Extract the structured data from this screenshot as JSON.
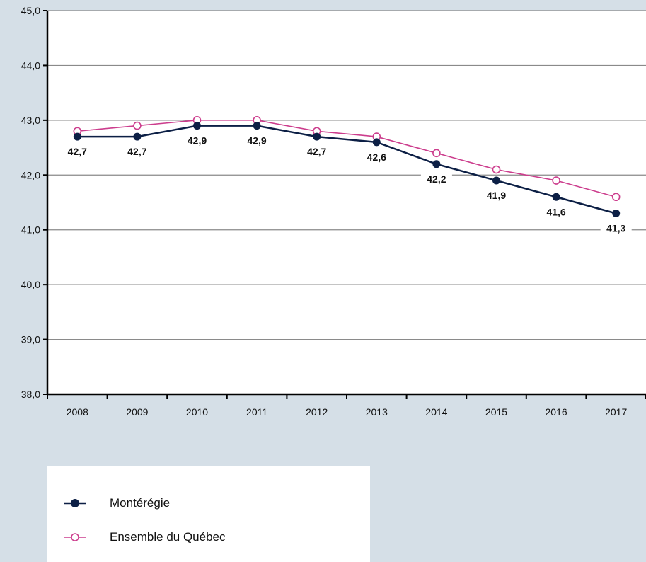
{
  "chart_data": {
    "type": "line",
    "categories": [
      "2008",
      "2009",
      "2010",
      "2011",
      "2012",
      "2013",
      "2014",
      "2015",
      "2016",
      "2017"
    ],
    "series": [
      {
        "name": "Montérégie",
        "values": [
          42.7,
          42.7,
          42.9,
          42.9,
          42.7,
          42.6,
          42.2,
          41.9,
          41.6,
          41.3
        ],
        "value_labels": [
          "42,7",
          "42,7",
          "42,9",
          "42,9",
          "42,7",
          "42,6",
          "42,2",
          "41,9",
          "41,6",
          "41,3"
        ],
        "color": "#0c1f45",
        "marker": "filled-circle"
      },
      {
        "name": "Ensemble du Québec",
        "values": [
          42.8,
          42.9,
          43.0,
          43.0,
          42.8,
          42.7,
          42.4,
          42.1,
          41.9,
          41.6
        ],
        "color": "#cc3d8d",
        "marker": "open-circle"
      }
    ],
    "y_ticks": [
      "38,0",
      "39,0",
      "40,0",
      "41,0",
      "42,0",
      "43,0",
      "44,0",
      "45,0"
    ],
    "ylim": [
      38,
      45
    ],
    "grid": true,
    "legend_position": "bottom-left"
  }
}
